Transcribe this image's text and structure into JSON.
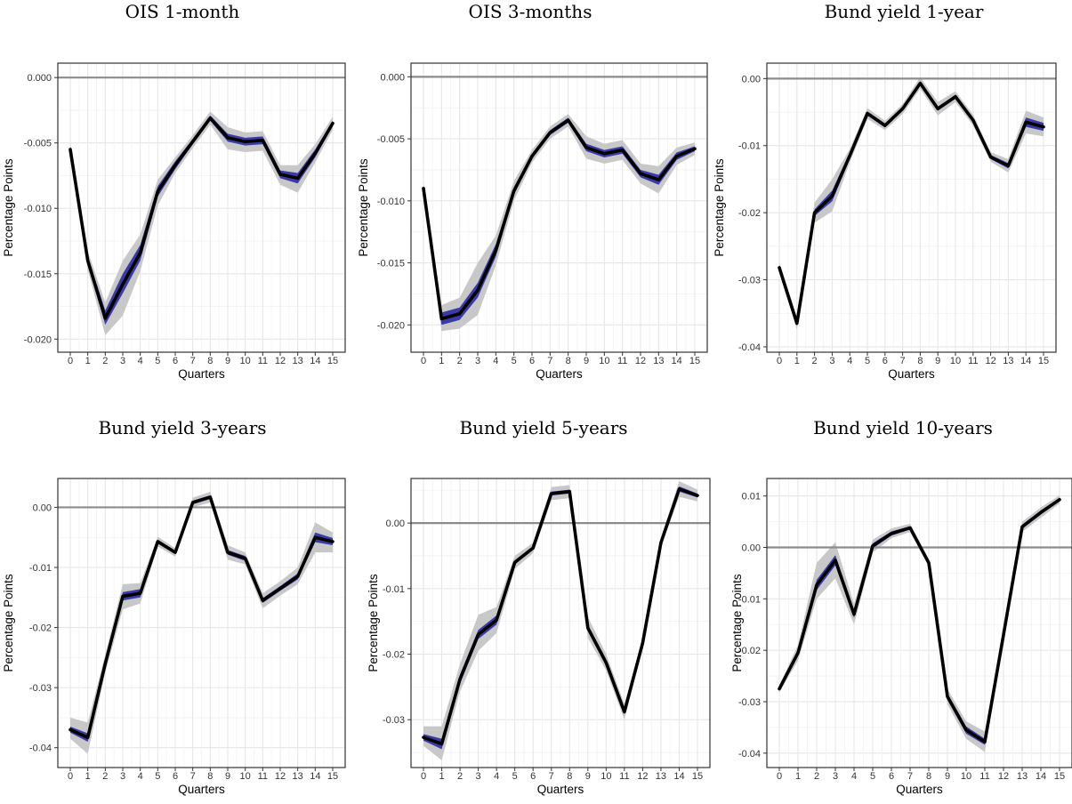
{
  "chart_data": [
    {
      "type": "line",
      "title": "OIS 1-month",
      "xlabel": "Quarters",
      "ylabel": "Percentage Points",
      "x": [
        0,
        1,
        2,
        3,
        4,
        5,
        6,
        7,
        8,
        9,
        10,
        11,
        12,
        13,
        14,
        15
      ],
      "ylim": [
        -0.021,
        0.0011
      ],
      "yticks": [
        -0.02,
        -0.015,
        -0.01,
        -0.005,
        0.0
      ],
      "ytick_labels": [
        "-0.020",
        "-0.015",
        "-0.010",
        "-0.005",
        "0.000"
      ],
      "zero_line": 0,
      "grid": true,
      "series": [
        {
          "role": "point_estimate",
          "values": [
            -0.0055,
            -0.014,
            -0.0184,
            -0.0158,
            -0.0134,
            -0.0087,
            -0.0067,
            -0.0049,
            -0.0031,
            -0.0046,
            -0.0049,
            -0.0048,
            -0.0074,
            -0.0077,
            -0.0058,
            -0.0035
          ]
        },
        {
          "role": "inner_band",
          "lower": [
            -0.0057,
            -0.0143,
            -0.0189,
            -0.0165,
            -0.014,
            -0.0091,
            -0.007,
            -0.0051,
            -0.0033,
            -0.0049,
            -0.0052,
            -0.0051,
            -0.0077,
            -0.0081,
            -0.0061,
            -0.0037
          ],
          "upper": [
            -0.0053,
            -0.0137,
            -0.0178,
            -0.015,
            -0.0128,
            -0.0083,
            -0.0064,
            -0.0047,
            -0.0029,
            -0.0043,
            -0.0046,
            -0.0045,
            -0.0071,
            -0.0073,
            -0.0055,
            -0.0033
          ]
        },
        {
          "role": "outer_band",
          "lower": [
            -0.006,
            -0.0147,
            -0.0197,
            -0.0182,
            -0.0148,
            -0.0098,
            -0.0073,
            -0.0054,
            -0.0036,
            -0.0055,
            -0.0057,
            -0.0056,
            -0.0082,
            -0.0088,
            -0.0065,
            -0.004
          ],
          "upper": [
            -0.005,
            -0.0133,
            -0.0172,
            -0.014,
            -0.012,
            -0.0078,
            -0.0061,
            -0.0044,
            -0.0026,
            -0.0038,
            -0.0042,
            -0.0041,
            -0.0067,
            -0.0067,
            -0.0051,
            -0.003
          ]
        }
      ]
    },
    {
      "type": "line",
      "title": "OIS 3-months",
      "xlabel": "Quarters",
      "ylabel": "Percentage Points",
      "x": [
        0,
        1,
        2,
        3,
        4,
        5,
        6,
        7,
        8,
        9,
        10,
        11,
        12,
        13,
        14,
        15
      ],
      "ylim": [
        -0.0222,
        0.0011
      ],
      "yticks": [
        -0.02,
        -0.015,
        -0.01,
        -0.005,
        0.0
      ],
      "ytick_labels": [
        "-0.020",
        "-0.015",
        "-0.010",
        "-0.005",
        "0.000"
      ],
      "zero_line": 0,
      "grid": true,
      "series": [
        {
          "role": "point_estimate",
          "values": [
            -0.009,
            -0.0195,
            -0.0191,
            -0.0172,
            -0.014,
            -0.0092,
            -0.0064,
            -0.0045,
            -0.0035,
            -0.0057,
            -0.0062,
            -0.0059,
            -0.0078,
            -0.0083,
            -0.0064,
            -0.0058
          ]
        },
        {
          "role": "inner_band",
          "lower": [
            -0.0092,
            -0.02,
            -0.0196,
            -0.0178,
            -0.0145,
            -0.0095,
            -0.0066,
            -0.0047,
            -0.0037,
            -0.006,
            -0.0065,
            -0.0062,
            -0.0081,
            -0.0087,
            -0.0067,
            -0.006
          ],
          "upper": [
            -0.0088,
            -0.019,
            -0.0186,
            -0.0166,
            -0.0135,
            -0.0089,
            -0.0062,
            -0.0043,
            -0.0033,
            -0.0054,
            -0.0059,
            -0.0056,
            -0.0075,
            -0.0079,
            -0.0061,
            -0.0056
          ]
        },
        {
          "role": "outer_band",
          "lower": [
            -0.0095,
            -0.0205,
            -0.0203,
            -0.0192,
            -0.0152,
            -0.01,
            -0.0069,
            -0.005,
            -0.004,
            -0.0066,
            -0.007,
            -0.0067,
            -0.0086,
            -0.0094,
            -0.0071,
            -0.0063
          ],
          "upper": [
            -0.0085,
            -0.0184,
            -0.0178,
            -0.015,
            -0.0128,
            -0.0084,
            -0.0059,
            -0.004,
            -0.003,
            -0.0048,
            -0.0054,
            -0.0051,
            -0.007,
            -0.0072,
            -0.0057,
            -0.0053
          ]
        }
      ]
    },
    {
      "type": "line",
      "title": "Bund yield 1-year",
      "xlabel": "Quarters",
      "ylabel": "Percentage Points",
      "x": [
        0,
        1,
        2,
        3,
        4,
        5,
        6,
        7,
        8,
        9,
        10,
        11,
        12,
        13,
        14,
        15
      ],
      "ylim": [
        -0.0408,
        0.0023
      ],
      "yticks": [
        -0.04,
        -0.03,
        -0.02,
        -0.01,
        0.0
      ],
      "ytick_labels": [
        "-0.04",
        "-0.03",
        "-0.02",
        "-0.01",
        "0.00"
      ],
      "zero_line": 0,
      "grid": true,
      "series": [
        {
          "role": "point_estimate",
          "values": [
            -0.0282,
            -0.0365,
            -0.02,
            -0.0175,
            -0.0115,
            -0.0052,
            -0.007,
            -0.0045,
            -0.0007,
            -0.0045,
            -0.0027,
            -0.0062,
            -0.0117,
            -0.013,
            -0.0065,
            -0.0072
          ]
        },
        {
          "role": "inner_band",
          "lower": [
            -0.0285,
            -0.0368,
            -0.0205,
            -0.0183,
            -0.012,
            -0.0055,
            -0.0073,
            -0.0048,
            -0.001,
            -0.0048,
            -0.003,
            -0.0065,
            -0.012,
            -0.0134,
            -0.0072,
            -0.0078
          ],
          "upper": [
            -0.0279,
            -0.0362,
            -0.0195,
            -0.0167,
            -0.011,
            -0.0049,
            -0.0067,
            -0.0042,
            -0.0004,
            -0.0042,
            -0.0024,
            -0.0059,
            -0.0114,
            -0.0126,
            -0.0058,
            -0.0066
          ]
        },
        {
          "role": "outer_band",
          "lower": [
            -0.029,
            -0.0374,
            -0.0215,
            -0.0198,
            -0.0125,
            -0.006,
            -0.0077,
            -0.0053,
            -0.0015,
            -0.0055,
            -0.0035,
            -0.007,
            -0.0124,
            -0.014,
            -0.0082,
            -0.0086
          ],
          "upper": [
            -0.0274,
            -0.0356,
            -0.0185,
            -0.015,
            -0.0105,
            -0.0044,
            -0.0063,
            -0.0038,
            0.0002,
            -0.0035,
            -0.0019,
            -0.0054,
            -0.011,
            -0.012,
            -0.0048,
            -0.0058
          ]
        }
      ]
    },
    {
      "type": "line",
      "title": "Bund yield 3-years",
      "xlabel": "Quarters",
      "ylabel": "Percentage Points",
      "x": [
        0,
        1,
        2,
        3,
        4,
        5,
        6,
        7,
        8,
        9,
        10,
        11,
        12,
        13,
        14,
        15
      ],
      "ylim": [
        -0.0433,
        0.0048
      ],
      "yticks": [
        -0.04,
        -0.03,
        -0.02,
        -0.01,
        0.0
      ],
      "ytick_labels": [
        "-0.04",
        "-0.03",
        "-0.02",
        "-0.01",
        "0.00"
      ],
      "zero_line": 0,
      "grid": true,
      "series": [
        {
          "role": "point_estimate",
          "values": [
            -0.037,
            -0.0383,
            -0.026,
            -0.0148,
            -0.0143,
            -0.0057,
            -0.0075,
            0.0008,
            0.0017,
            -0.0075,
            -0.0085,
            -0.0155,
            -0.0135,
            -0.0115,
            -0.005,
            -0.0057
          ]
        },
        {
          "role": "inner_band",
          "lower": [
            -0.0375,
            -0.039,
            -0.0265,
            -0.0155,
            -0.015,
            -0.006,
            -0.0078,
            0.0005,
            0.0014,
            -0.0079,
            -0.0089,
            -0.0159,
            -0.0139,
            -0.012,
            -0.0058,
            -0.0063
          ],
          "upper": [
            -0.0365,
            -0.0376,
            -0.0255,
            -0.0141,
            -0.0136,
            -0.0054,
            -0.0072,
            0.0011,
            0.002,
            -0.0071,
            -0.0081,
            -0.0151,
            -0.0131,
            -0.011,
            -0.0042,
            -0.0051
          ]
        },
        {
          "role": "outer_band",
          "lower": [
            -0.0385,
            -0.041,
            -0.0275,
            -0.017,
            -0.016,
            -0.0065,
            -0.0082,
            0.0,
            0.0008,
            -0.0087,
            -0.0095,
            -0.0168,
            -0.0147,
            -0.0128,
            -0.0075,
            -0.0075
          ],
          "upper": [
            -0.035,
            -0.0358,
            -0.0245,
            -0.0128,
            -0.0126,
            -0.0049,
            -0.0068,
            0.0016,
            0.0026,
            -0.0063,
            -0.0075,
            -0.0143,
            -0.0123,
            -0.01,
            -0.0025,
            -0.0042
          ]
        }
      ]
    },
    {
      "type": "line",
      "title": "Bund yield 5-years",
      "xlabel": "Quarters",
      "ylabel": "Percentage Points",
      "x": [
        0,
        1,
        2,
        3,
        4,
        5,
        6,
        7,
        8,
        9,
        10,
        11,
        12,
        13,
        14,
        15
      ],
      "ylim": [
        -0.0373,
        0.0068
      ],
      "yticks": [
        -0.03,
        -0.02,
        -0.01,
        0.0
      ],
      "ytick_labels": [
        "-0.03",
        "-0.02",
        "-0.01",
        "0.00"
      ],
      "zero_line": 0,
      "grid": true,
      "series": [
        {
          "role": "point_estimate",
          "values": [
            -0.0327,
            -0.0337,
            -0.0238,
            -0.017,
            -0.0148,
            -0.006,
            -0.0038,
            0.0045,
            0.0048,
            -0.016,
            -0.0213,
            -0.0288,
            -0.0183,
            -0.003,
            0.0052,
            0.0042
          ]
        },
        {
          "role": "inner_band",
          "lower": [
            -0.0332,
            -0.0345,
            -0.0245,
            -0.0177,
            -0.0155,
            -0.0063,
            -0.0041,
            0.0042,
            0.0045,
            -0.0165,
            -0.0218,
            -0.0292,
            -0.0186,
            -0.0033,
            0.0048,
            0.0039
          ],
          "upper": [
            -0.0322,
            -0.0329,
            -0.0231,
            -0.0163,
            -0.0141,
            -0.0057,
            -0.0035,
            0.0048,
            0.0051,
            -0.0155,
            -0.0208,
            -0.0284,
            -0.018,
            -0.0027,
            0.0056,
            0.0045
          ]
        },
        {
          "role": "outer_band",
          "lower": [
            -0.034,
            -0.0362,
            -0.0257,
            -0.0195,
            -0.0168,
            -0.007,
            -0.0046,
            0.0035,
            0.0038,
            -0.0175,
            -0.0225,
            -0.03,
            -0.019,
            -0.0037,
            0.004,
            0.0033
          ],
          "upper": [
            -0.031,
            -0.031,
            -0.0215,
            -0.014,
            -0.0128,
            -0.005,
            -0.003,
            0.0055,
            0.0058,
            -0.0143,
            -0.02,
            -0.0276,
            -0.0176,
            -0.0023,
            0.0064,
            0.0051
          ]
        }
      ]
    },
    {
      "type": "line",
      "title": "Bund yield 10-years",
      "xlabel": "Quarters",
      "ylabel": "Percentage Points",
      "x": [
        0,
        1,
        2,
        3,
        4,
        5,
        6,
        7,
        8,
        9,
        10,
        11,
        12,
        13,
        14,
        15
      ],
      "ylim": [
        -0.0428,
        0.0134
      ],
      "yticks": [
        -0.04,
        -0.03,
        -0.02,
        -0.01,
        0.0,
        0.01
      ],
      "ytick_labels": [
        "-0.04",
        "-0.03",
        "-0.02",
        "-0.01",
        "0.00",
        "0.01"
      ],
      "zero_line": 0,
      "grid": true,
      "series": [
        {
          "role": "point_estimate",
          "values": [
            -0.0275,
            -0.0205,
            -0.0073,
            -0.0025,
            -0.013,
            0.0003,
            0.0027,
            0.0038,
            -0.003,
            -0.029,
            -0.0355,
            -0.0378,
            -0.017,
            0.004,
            0.0068,
            0.0093
          ]
        },
        {
          "role": "inner_band",
          "lower": [
            -0.0278,
            -0.021,
            -0.0083,
            -0.0035,
            -0.0137,
            -0.0002,
            0.0023,
            0.0035,
            -0.0033,
            -0.0296,
            -0.0362,
            -0.0384,
            -0.0173,
            0.0036,
            0.0064,
            0.009
          ],
          "upper": [
            -0.0272,
            -0.02,
            -0.0063,
            -0.0015,
            -0.0123,
            0.0008,
            0.0031,
            0.0041,
            -0.0027,
            -0.0284,
            -0.0348,
            -0.0372,
            -0.0167,
            0.0044,
            0.0072,
            0.0096
          ]
        },
        {
          "role": "outer_band",
          "lower": [
            -0.0282,
            -0.022,
            -0.01,
            -0.006,
            -0.015,
            -0.001,
            0.0018,
            0.003,
            -0.0037,
            -0.0305,
            -0.0372,
            -0.0398,
            -0.0178,
            0.003,
            0.0058,
            0.0085
          ],
          "upper": [
            -0.0268,
            -0.019,
            -0.003,
            0.001,
            -0.011,
            0.0015,
            0.0037,
            0.0046,
            -0.0023,
            -0.0275,
            -0.0338,
            -0.0358,
            -0.0162,
            0.005,
            0.0078,
            0.0101
          ]
        }
      ]
    }
  ]
}
